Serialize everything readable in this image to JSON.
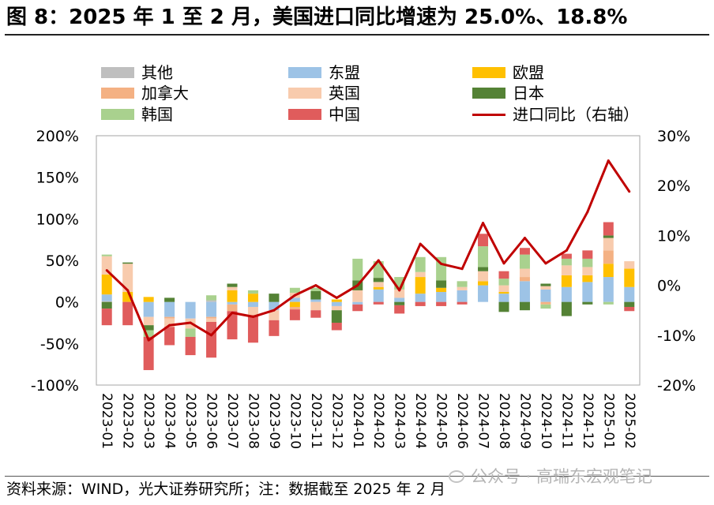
{
  "title": "图 8：2025 年 1 至 2 月，美国进口同比增速为 25.0%、18.8%",
  "source": "资料来源：WIND，光大证券研究所；注：数据截至 2025 年 2 月",
  "watermark": "公众号 · 高瑞东宏观笔记",
  "chart_data": {
    "type": "bar",
    "stacked": true,
    "legend": "top",
    "grid": false,
    "categories": [
      "2023-01",
      "2023-02",
      "2023-03",
      "2023-04",
      "2023-05",
      "2023-06",
      "2023-07",
      "2023-08",
      "2023-09",
      "2023-10",
      "2023-11",
      "2023-12",
      "2024-01",
      "2024-02",
      "2024-03",
      "2024-04",
      "2024-05",
      "2024-06",
      "2024-07",
      "2024-08",
      "2024-09",
      "2024-10",
      "2024-11",
      "2024-12",
      "2025-01",
      "2025-02"
    ],
    "series": [
      {
        "name": "其他",
        "color": "#bfbfbf",
        "values": [
          1,
          0,
          0,
          0,
          0,
          2,
          0,
          0,
          0,
          0,
          0,
          0,
          0,
          0,
          0,
          0,
          0,
          0,
          0,
          0,
          0,
          0,
          0,
          0,
          0,
          0
        ]
      },
      {
        "name": "东盟",
        "color": "#9dc3e6",
        "values": [
          8,
          0,
          -18,
          -18,
          -20,
          -18,
          -3,
          -6,
          -10,
          5,
          3,
          -5,
          -3,
          15,
          5,
          10,
          12,
          14,
          20,
          10,
          25,
          15,
          18,
          24,
          30,
          18
        ]
      },
      {
        "name": "欧盟",
        "color": "#ffc000",
        "values": [
          24,
          12,
          6,
          0,
          0,
          0,
          14,
          10,
          0,
          -6,
          0,
          3,
          0,
          3,
          0,
          20,
          5,
          0,
          5,
          2,
          0,
          0,
          14,
          8,
          16,
          22
        ]
      },
      {
        "name": "加拿大",
        "color": "#f4b183",
        "values": [
          0,
          0,
          0,
          -2,
          0,
          -2,
          -8,
          0,
          0,
          -3,
          0,
          0,
          0,
          0,
          0,
          0,
          0,
          0,
          0,
          0,
          5,
          -3,
          0,
          0,
          16,
          0
        ]
      },
      {
        "name": "英国",
        "color": "#f8cbad",
        "values": [
          22,
          34,
          -10,
          -10,
          -12,
          -4,
          4,
          -10,
          -12,
          6,
          -10,
          -5,
          14,
          6,
          10,
          6,
          0,
          4,
          12,
          8,
          10,
          4,
          12,
          10,
          15,
          9
        ]
      },
      {
        "name": "日本",
        "color": "#548235",
        "values": [
          -8,
          1.5,
          -6,
          5,
          0,
          0,
          4,
          0,
          10,
          0,
          10,
          -15,
          12,
          5,
          -4,
          0,
          9,
          0,
          5,
          -12,
          -10,
          3,
          -17,
          -3,
          3,
          -6
        ]
      },
      {
        "name": "韩国",
        "color": "#a9d18e",
        "values": [
          2,
          0,
          -8,
          0,
          -10,
          6,
          0,
          4,
          0,
          6,
          4,
          0,
          26,
          20,
          15,
          18,
          28,
          7,
          25,
          8,
          17,
          -5,
          8,
          10,
          -3,
          0
        ]
      },
      {
        "name": "中国",
        "color": "#e05c5c",
        "values": [
          -20,
          -28,
          -40,
          -22,
          -22,
          -43,
          -34,
          -33,
          -19,
          -13,
          -9,
          -9,
          -8,
          -3,
          -10,
          -5,
          -5,
          -3,
          15,
          9,
          8,
          0,
          6,
          10,
          16,
          -5
        ]
      }
    ],
    "line_series": {
      "name": "进口同比（右轴）",
      "color": "#c00000",
      "axis": "right",
      "values": [
        3,
        -1,
        -11,
        -8,
        -7.5,
        -10,
        -5.5,
        -6.3,
        -5,
        -2,
        0,
        -2.5,
        0,
        5,
        -1,
        8.3,
        4.3,
        3.3,
        12.5,
        4.4,
        9.5,
        4.4,
        7,
        14.7,
        25,
        18.8
      ]
    },
    "y_left": {
      "lim": [
        -100,
        200
      ],
      "ticks": [
        200,
        150,
        100,
        50,
        0,
        -50,
        -100
      ],
      "tick_labels": [
        "200%",
        "150%",
        "100%",
        "50%",
        "0%",
        "-50%",
        "-100%"
      ]
    },
    "y_right": {
      "lim": [
        -20,
        30
      ],
      "ticks": [
        30,
        20,
        10,
        0,
        -10,
        -20
      ],
      "tick_labels": [
        "30%",
        "20%",
        "10%",
        "0%",
        "-10%",
        "-20%"
      ]
    }
  }
}
